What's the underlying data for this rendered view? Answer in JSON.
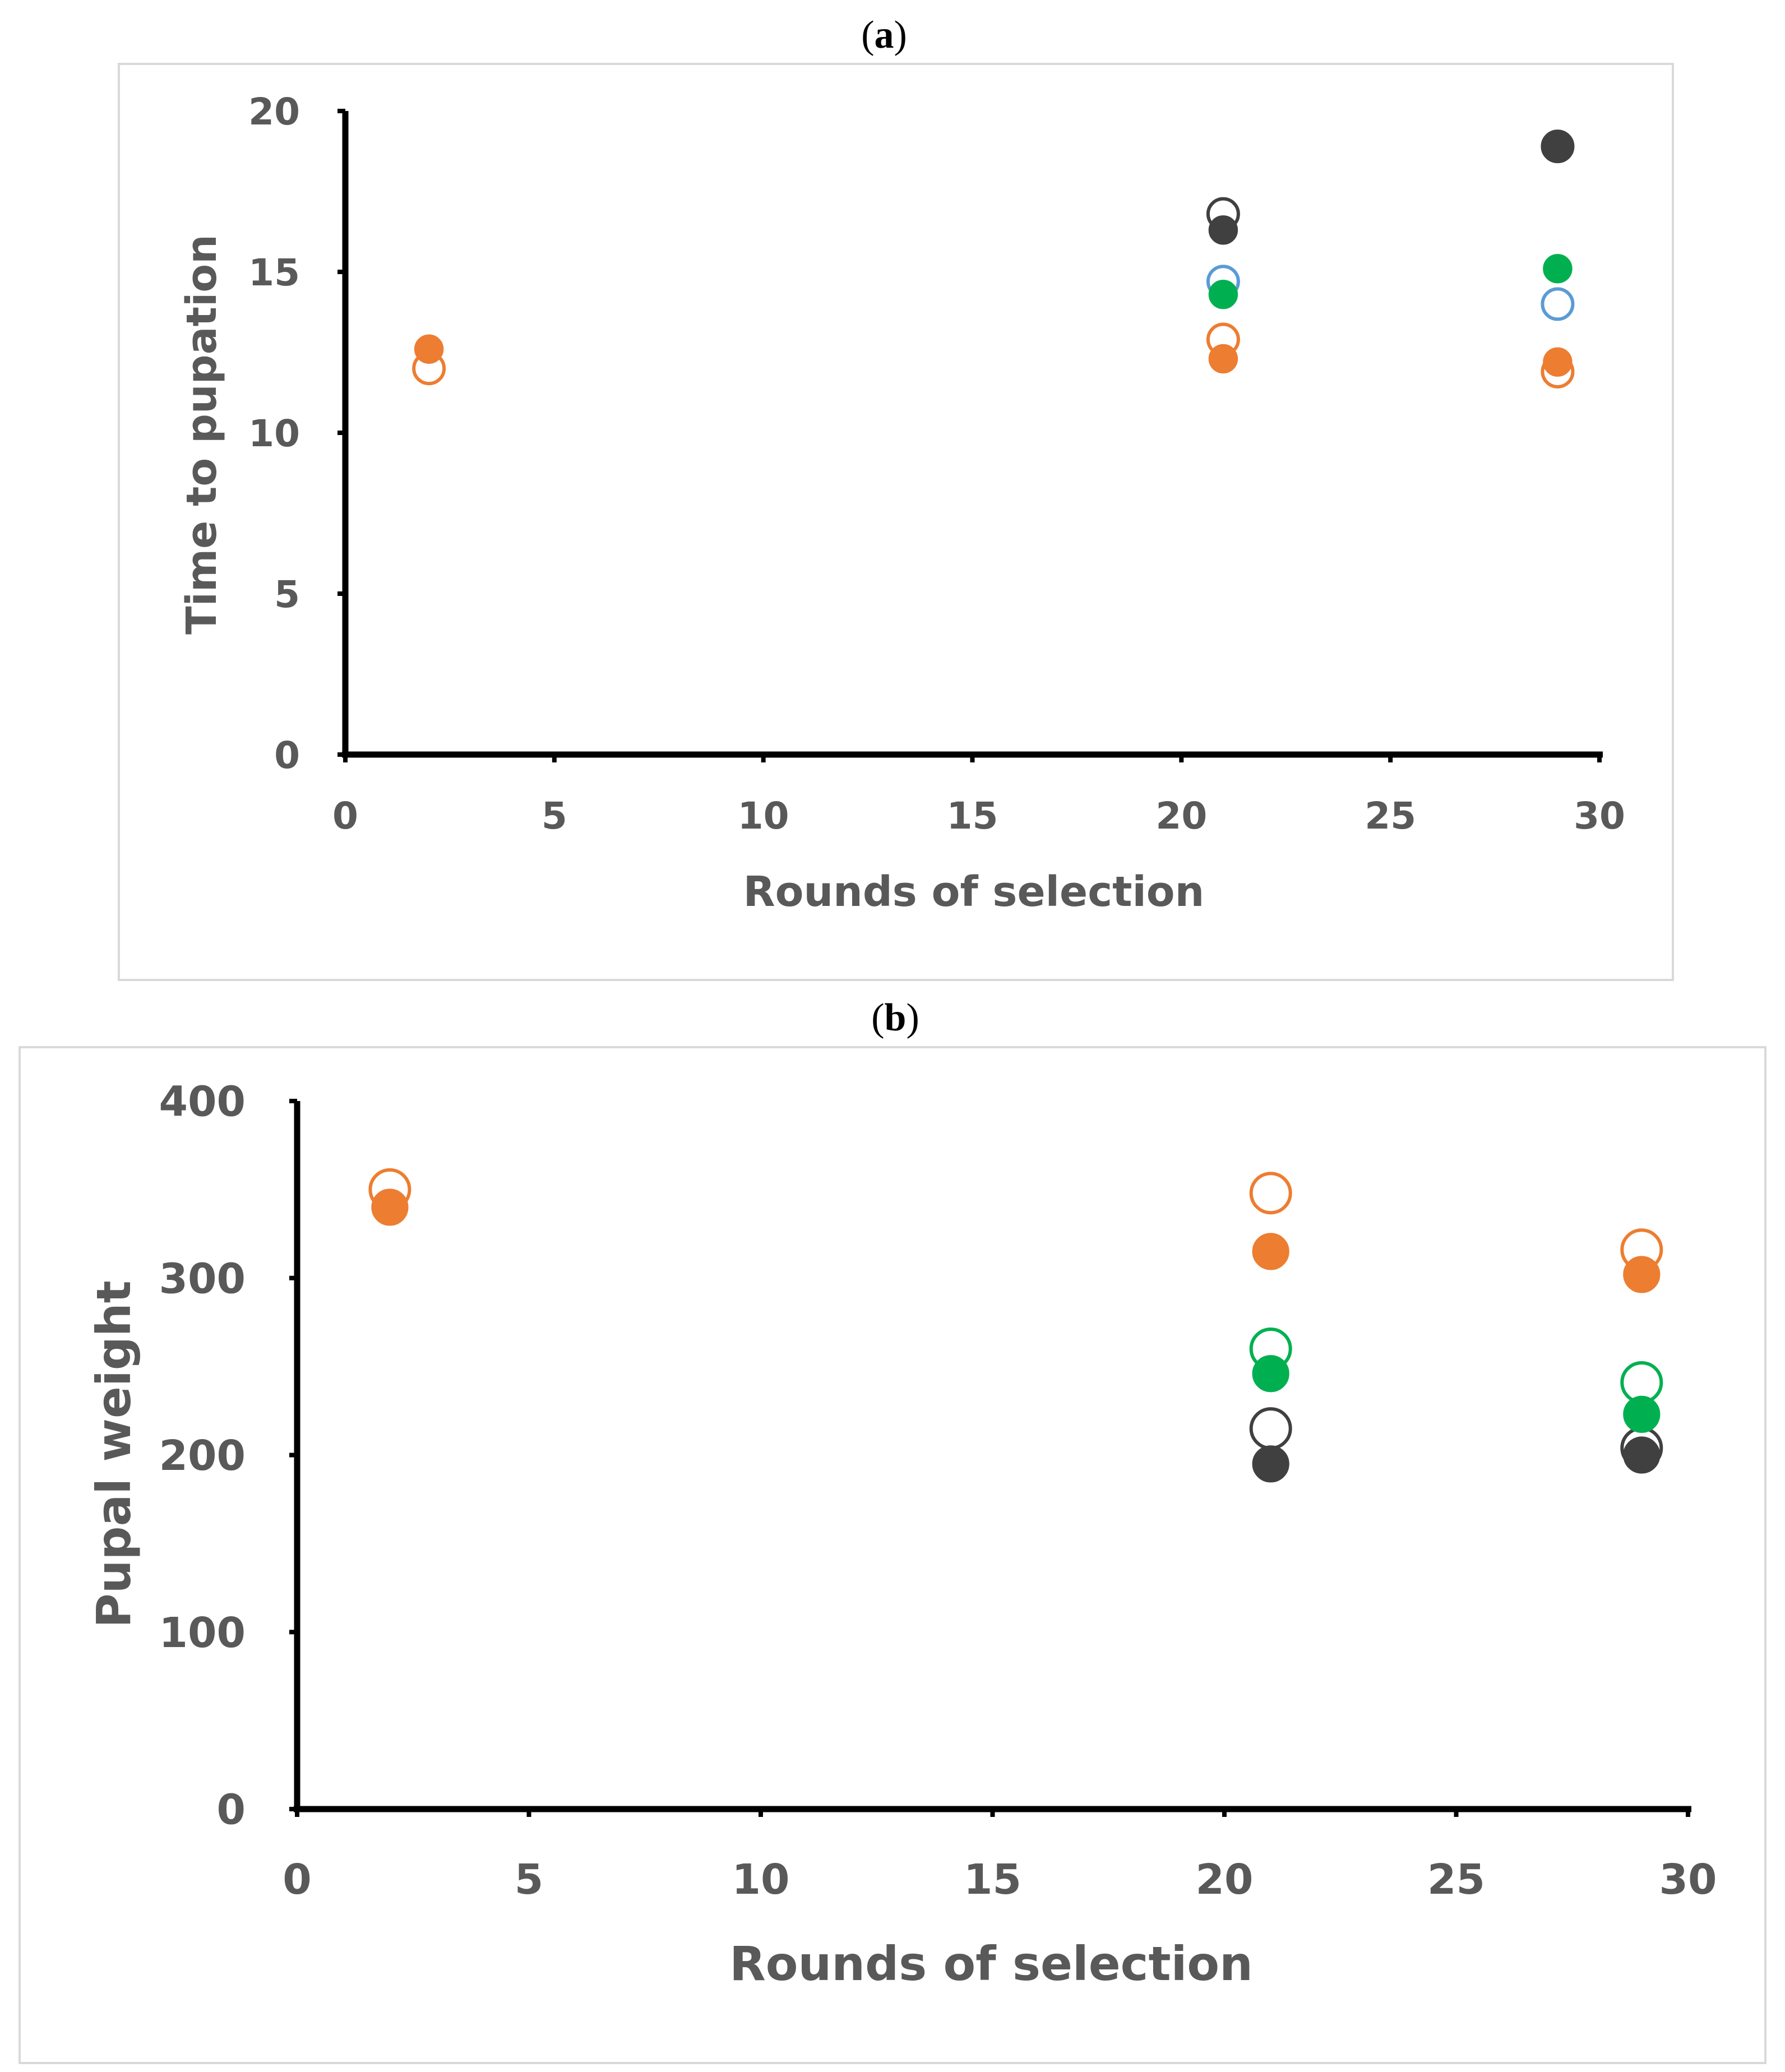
{
  "chart_data": [
    {
      "panel": "a",
      "type": "scatter",
      "title": "",
      "xlabel": "Rounds of selection",
      "ylabel": "Time to pupation",
      "xlim": [
        0,
        30
      ],
      "ylim": [
        0,
        20
      ],
      "xticks": [
        0,
        5,
        10,
        15,
        20,
        25,
        30
      ],
      "yticks": [
        0,
        5,
        10,
        15,
        20
      ],
      "grid": false,
      "legend": "none",
      "series": [
        {
          "name": "orange open",
          "color": "#ED7D31",
          "filled": false,
          "points": [
            {
              "x": 2,
              "y": 12.0
            },
            {
              "x": 21,
              "y": 12.9
            },
            {
              "x": 29,
              "y": 11.9
            }
          ]
        },
        {
          "name": "orange filled",
          "color": "#ED7D31",
          "filled": true,
          "points": [
            {
              "x": 2,
              "y": 12.6
            },
            {
              "x": 21,
              "y": 12.3
            },
            {
              "x": 29,
              "y": 12.2
            }
          ]
        },
        {
          "name": "blue open",
          "color": "#5B9BD5",
          "filled": false,
          "points": [
            {
              "x": 21,
              "y": 14.7
            },
            {
              "x": 29,
              "y": 14.0
            }
          ]
        },
        {
          "name": "green filled",
          "color": "#00B050",
          "filled": true,
          "points": [
            {
              "x": 21,
              "y": 14.3
            },
            {
              "x": 29,
              "y": 15.1
            }
          ]
        },
        {
          "name": "gray open",
          "color": "#404040",
          "filled": false,
          "points": [
            {
              "x": 21,
              "y": 16.8
            },
            {
              "x": 29,
              "y": 18.9
            }
          ]
        },
        {
          "name": "gray filled",
          "color": "#404040",
          "filled": true,
          "points": [
            {
              "x": 21,
              "y": 16.3
            },
            {
              "x": 29,
              "y": 18.9
            }
          ]
        }
      ]
    },
    {
      "panel": "b",
      "type": "scatter",
      "title": "",
      "xlabel": "Rounds of selection",
      "ylabel": "Pupal weight",
      "xlim": [
        0,
        30
      ],
      "ylim": [
        0,
        400
      ],
      "xticks": [
        0,
        5,
        10,
        15,
        20,
        25,
        30
      ],
      "yticks": [
        0,
        100,
        200,
        300,
        400
      ],
      "grid": false,
      "legend": "none",
      "series": [
        {
          "name": "orange open",
          "color": "#ED7D31",
          "filled": false,
          "points": [
            {
              "x": 2,
              "y": 350
            },
            {
              "x": 21,
              "y": 348
            },
            {
              "x": 29,
              "y": 316
            }
          ]
        },
        {
          "name": "orange filled",
          "color": "#ED7D31",
          "filled": true,
          "points": [
            {
              "x": 2,
              "y": 340
            },
            {
              "x": 21,
              "y": 315
            },
            {
              "x": 29,
              "y": 302
            }
          ]
        },
        {
          "name": "green open",
          "color": "#00B050",
          "filled": false,
          "points": [
            {
              "x": 21,
              "y": 260
            },
            {
              "x": 29,
              "y": 241
            }
          ]
        },
        {
          "name": "green filled",
          "color": "#00B050",
          "filled": true,
          "points": [
            {
              "x": 21,
              "y": 246
            },
            {
              "x": 29,
              "y": 223
            }
          ]
        },
        {
          "name": "gray open",
          "color": "#404040",
          "filled": false,
          "points": [
            {
              "x": 21,
              "y": 215
            },
            {
              "x": 29,
              "y": 204
            }
          ]
        },
        {
          "name": "gray filled",
          "color": "#404040",
          "filled": true,
          "points": [
            {
              "x": 21,
              "y": 195
            },
            {
              "x": 29,
              "y": 200
            }
          ]
        }
      ]
    }
  ]
}
